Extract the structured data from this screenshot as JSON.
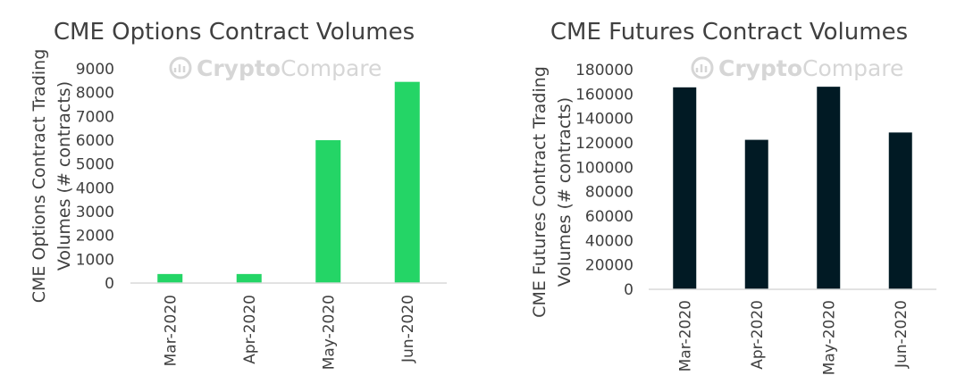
{
  "watermark": {
    "brand_a": "Crypto",
    "brand_b": "Compare",
    "icon": "cryptocompare-logo"
  },
  "chart_data": [
    {
      "type": "bar",
      "title": "CME Options Contract Volumes",
      "ylabel_lines": [
        "CME Options Contract Trading",
        "Volumes (# contracts)"
      ],
      "xlabel": "",
      "categories": [
        "Mar-2020",
        "Apr-2020",
        "May-2020",
        "Jun-2020"
      ],
      "values": [
        380,
        380,
        6000,
        8450
      ],
      "ylim": [
        0,
        9000
      ],
      "yticks": [
        0,
        1000,
        2000,
        3000,
        4000,
        5000,
        6000,
        7000,
        8000,
        9000
      ],
      "color": "#24d566",
      "grid": false,
      "legend": "none"
    },
    {
      "type": "bar",
      "title": "CME Futures Contract Volumes",
      "ylabel_lines": [
        "CME Futures Contract Trading",
        "Volumes (# contracts)"
      ],
      "xlabel": "",
      "categories": [
        "Mar-2020",
        "Apr-2020",
        "May-2020",
        "Jun-2020"
      ],
      "values": [
        165500,
        122500,
        166000,
        128500
      ],
      "ylim": [
        0,
        180000
      ],
      "yticks": [
        0,
        20000,
        40000,
        60000,
        80000,
        100000,
        120000,
        140000,
        160000,
        180000
      ],
      "color": "#011a24",
      "grid": false,
      "legend": "none"
    }
  ]
}
